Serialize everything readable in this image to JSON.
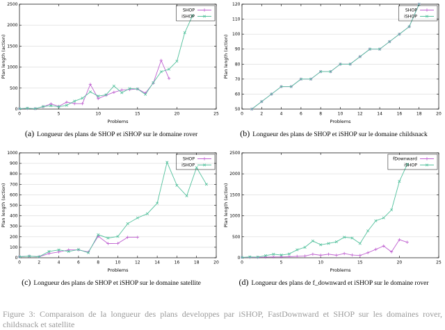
{
  "figure": {
    "partial_caption_clipped": "Figure 3: Comparaison de la longueur des plans developpes par iSHOP, FastDownward et SHOP sur les domaines rover, childsnack et satellite"
  },
  "colors": {
    "shop_magenta": "#bf60d0",
    "ishop_teal": "#52c19c",
    "grid": "#d8d8d8",
    "axis": "#000000",
    "text": "#000000"
  },
  "chart_data": [
    {
      "type": "line",
      "caption_label": "(a)",
      "caption": "Longueur des plans de SHOP et iSHOP sur le domaine rover",
      "xlabel": "Problems",
      "ylabel": "Plan length (action)",
      "xlim": [
        0,
        25
      ],
      "xtick_step": 5,
      "ylim": [
        0,
        2500
      ],
      "ytick_step": 500,
      "grid": "horizontal",
      "legend_position": "top-right",
      "series": [
        {
          "name": "SHOP",
          "color": "#bf60d0",
          "marker": "plus",
          "x": [
            0,
            1,
            2,
            3,
            4,
            5,
            6,
            7,
            8,
            9,
            10,
            11,
            12,
            13,
            14,
            15,
            16,
            17,
            18,
            19
          ],
          "y": [
            10,
            15,
            10,
            55,
            125,
            65,
            165,
            130,
            130,
            590,
            250,
            330,
            400,
            455,
            465,
            480,
            380,
            620,
            1160,
            730
          ]
        },
        {
          "name": "iSHOP",
          "color": "#52c19c",
          "marker": "cross",
          "x": [
            0,
            1,
            2,
            3,
            4,
            5,
            6,
            7,
            8,
            9,
            10,
            11,
            12,
            13,
            14,
            15,
            16,
            17,
            18,
            19,
            20,
            21,
            22
          ],
          "y": [
            10,
            20,
            10,
            60,
            80,
            55,
            90,
            190,
            260,
            410,
            310,
            340,
            550,
            390,
            490,
            480,
            350,
            630,
            890,
            950,
            1140,
            1820,
            2230
          ]
        }
      ]
    },
    {
      "type": "line",
      "caption_label": "(b)",
      "caption": "Longueur des plans de SHOP et iSHOP sur le domaine childsnack",
      "xlabel": "Problems",
      "ylabel": "Plan length (action)",
      "xlim": [
        0,
        20
      ],
      "xtick_step": 2,
      "ylim": [
        50,
        120
      ],
      "ytick_step": 10,
      "grid": "horizontal",
      "legend_position": "top-right",
      "series": [
        {
          "name": "SHOP",
          "color": "#bf60d0",
          "marker": "plus",
          "x": [
            1,
            2,
            3,
            4,
            5,
            6,
            7,
            8,
            9,
            10,
            11,
            12,
            13,
            14,
            15,
            16,
            17,
            18
          ],
          "y": [
            50,
            55,
            60,
            65,
            65,
            70,
            70,
            75,
            75,
            80,
            80,
            85,
            90,
            90,
            95,
            100,
            105,
            120
          ]
        },
        {
          "name": "iSHOP",
          "color": "#52c19c",
          "marker": "cross",
          "x": [
            1,
            2,
            3,
            4,
            5,
            6,
            7,
            8,
            9,
            10,
            11,
            12,
            13,
            14,
            15,
            16,
            17,
            18
          ],
          "y": [
            50,
            55,
            60,
            65,
            65,
            70,
            70,
            75,
            75,
            80,
            80,
            85,
            90,
            90,
            95,
            100,
            105,
            120
          ]
        }
      ]
    },
    {
      "type": "line",
      "caption_label": "(c)",
      "caption": "Longueur des plans de SHOP et iSHOP sur le domaine satellite",
      "xlabel": "Problems",
      "ylabel": "Plan length (action)",
      "xlim": [
        0,
        20
      ],
      "xtick_step": 2,
      "ylim": [
        0,
        1000
      ],
      "ytick_step": 100,
      "grid": "horizontal",
      "legend_position": "top-right",
      "series": [
        {
          "name": "SHOP",
          "color": "#bf60d0",
          "marker": "plus",
          "x": [
            0,
            1,
            2,
            3,
            4,
            5,
            6,
            7,
            8,
            9,
            10,
            11,
            12
          ],
          "y": [
            10,
            15,
            10,
            40,
            55,
            75,
            75,
            55,
            205,
            135,
            137,
            195,
            195
          ]
        },
        {
          "name": "iSHOP",
          "color": "#52c19c",
          "marker": "cross",
          "x": [
            0,
            1,
            2,
            3,
            4,
            5,
            6,
            7,
            8,
            9,
            10,
            11,
            12,
            13,
            14,
            15,
            16,
            17,
            18,
            19
          ],
          "y": [
            10,
            15,
            10,
            60,
            75,
            60,
            78,
            48,
            220,
            188,
            203,
            325,
            380,
            420,
            520,
            910,
            690,
            590,
            860,
            700
          ]
        }
      ]
    },
    {
      "type": "line",
      "caption_label": "(d)",
      "caption": "Longueur des plans de f_downward et iSHOP sur le domaine rover",
      "xlabel": "Problems",
      "ylabel": "Plan length (action)",
      "xlim": [
        0,
        25
      ],
      "xtick_step": 5,
      "ylim": [
        0,
        2500
      ],
      "ytick_step": 500,
      "grid": "horizontal",
      "legend_position": "top-right",
      "series": [
        {
          "name": "fDownward",
          "color": "#bf60d0",
          "marker": "plus",
          "x": [
            0,
            1,
            2,
            3,
            4,
            5,
            6,
            7,
            8,
            9,
            10,
            11,
            12,
            13,
            14,
            15,
            16,
            17,
            18,
            19,
            20,
            21
          ],
          "y": [
            10,
            10,
            10,
            15,
            20,
            20,
            25,
            35,
            40,
            85,
            60,
            85,
            60,
            100,
            65,
            55,
            120,
            200,
            280,
            140,
            430,
            370
          ]
        },
        {
          "name": "iSHOP",
          "color": "#52c19c",
          "marker": "cross",
          "x": [
            0,
            1,
            2,
            3,
            4,
            5,
            6,
            7,
            8,
            9,
            10,
            11,
            12,
            13,
            14,
            15,
            16,
            17,
            18,
            19,
            20,
            21
          ],
          "y": [
            10,
            20,
            15,
            50,
            85,
            65,
            90,
            190,
            250,
            400,
            310,
            340,
            380,
            490,
            470,
            340,
            640,
            880,
            950,
            1140,
            1820,
            2230
          ]
        }
      ]
    }
  ]
}
